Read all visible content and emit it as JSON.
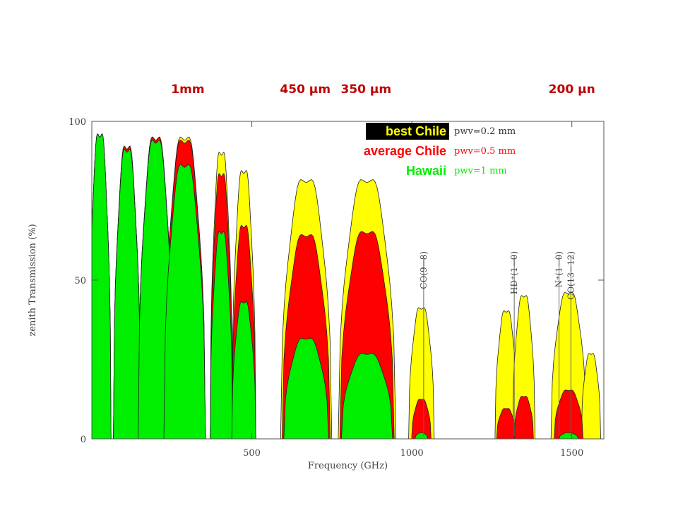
{
  "chart_data": {
    "type": "area",
    "xlabel": "Frequency (GHz)",
    "ylabel": "zenith Transmission (%)",
    "xlim": [
      0,
      1600
    ],
    "ylim": [
      0,
      100
    ],
    "x_ticks": [
      500,
      1000,
      1500
    ],
    "y_ticks": [
      0,
      50,
      100
    ],
    "grid": false,
    "legend_position": "top-right",
    "top_wavelength_labels": [
      {
        "label": "1mm",
        "frequency": 300
      },
      {
        "label": "450 μm",
        "frequency": 667
      },
      {
        "label": "350 μm",
        "frequency": 857
      },
      {
        "label": "200 μn",
        "frequency": 1500
      }
    ],
    "series": [
      {
        "name": "best Chile",
        "pwv": "pwv=0.2 mm",
        "color": "#ffff00",
        "windows": [
          {
            "center": 25,
            "width": 70,
            "peak": 100
          },
          {
            "center": 110,
            "width": 85,
            "peak": 96
          },
          {
            "center": 200,
            "width": 110,
            "peak": 99
          },
          {
            "center": 290,
            "width": 130,
            "peak": 99
          },
          {
            "center": 405,
            "width": 70,
            "peak": 94
          },
          {
            "center": 475,
            "width": 75,
            "peak": 88
          },
          {
            "center": 670,
            "width": 160,
            "peak": 85
          },
          {
            "center": 860,
            "width": 180,
            "peak": 85
          },
          {
            "center": 1030,
            "width": 80,
            "peak": 43
          },
          {
            "center": 1295,
            "width": 70,
            "peak": 42
          },
          {
            "center": 1350,
            "width": 70,
            "peak": 47
          },
          {
            "center": 1490,
            "width": 110,
            "peak": 48
          },
          {
            "center": 1560,
            "width": 60,
            "peak": 28
          }
        ]
      },
      {
        "name": "average Chile",
        "pwv": "pwv=0.5 mm",
        "color": "#ff0000",
        "windows": [
          {
            "center": 25,
            "width": 70,
            "peak": 100
          },
          {
            "center": 110,
            "width": 85,
            "peak": 96
          },
          {
            "center": 200,
            "width": 110,
            "peak": 99
          },
          {
            "center": 290,
            "width": 130,
            "peak": 98
          },
          {
            "center": 405,
            "width": 70,
            "peak": 87
          },
          {
            "center": 475,
            "width": 75,
            "peak": 70
          },
          {
            "center": 670,
            "width": 150,
            "peak": 67
          },
          {
            "center": 860,
            "width": 170,
            "peak": 68
          },
          {
            "center": 1030,
            "width": 60,
            "peak": 13
          },
          {
            "center": 1295,
            "width": 60,
            "peak": 10
          },
          {
            "center": 1350,
            "width": 60,
            "peak": 14
          },
          {
            "center": 1490,
            "width": 90,
            "peak": 16
          }
        ]
      },
      {
        "name": "Hawaii",
        "pwv": "pwv=1 mm",
        "color": "#00ee00",
        "windows": [
          {
            "center": 25,
            "width": 70,
            "peak": 100
          },
          {
            "center": 110,
            "width": 85,
            "peak": 95
          },
          {
            "center": 200,
            "width": 110,
            "peak": 98
          },
          {
            "center": 290,
            "width": 130,
            "peak": 90
          },
          {
            "center": 405,
            "width": 70,
            "peak": 68
          },
          {
            "center": 475,
            "width": 75,
            "peak": 45
          },
          {
            "center": 670,
            "width": 140,
            "peak": 33
          },
          {
            "center": 860,
            "width": 160,
            "peak": 28
          },
          {
            "center": 1030,
            "width": 40,
            "peak": 2
          },
          {
            "center": 1490,
            "width": 60,
            "peak": 2
          }
        ]
      }
    ],
    "line_markers": [
      {
        "label": "CO(9−8)",
        "frequency": 1037
      },
      {
        "label": "HD⁺(1−0)",
        "frequency": 1320
      },
      {
        "label": "N⁺(1−0)",
        "frequency": 1460
      },
      {
        "label": "CO(13−12)",
        "frequency": 1497
      }
    ]
  }
}
